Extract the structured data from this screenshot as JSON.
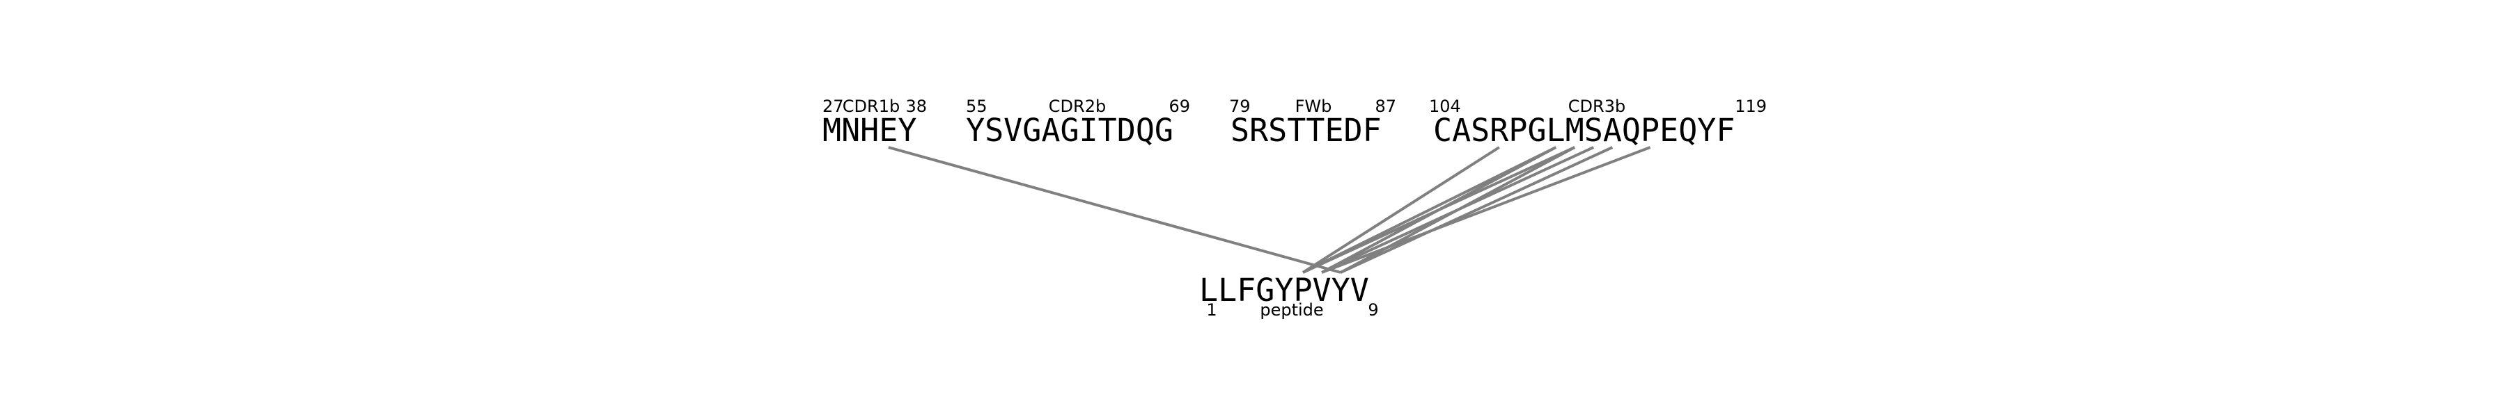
{
  "segments": [
    {
      "id": "cdr1b",
      "sequence": "MNHEY",
      "start": "27",
      "name": "CDR1b",
      "end": "38"
    },
    {
      "id": "cdr2b",
      "sequence": "YSVGAGITDQG",
      "start": "55",
      "name": "CDR2b",
      "end": "69"
    },
    {
      "id": "fwb",
      "sequence": "SRSTTEDF",
      "start": "79",
      "name": "FWb",
      "end": "87"
    },
    {
      "id": "cdr3b",
      "sequence": "CASRPGLMSAQPEQYF",
      "start": "104",
      "name": "CDR3b",
      "end": "119"
    }
  ],
  "peptide": {
    "sequence": "LLFGYPVYV",
    "start": "1",
    "name": "peptide",
    "end": "9"
  },
  "contacts": [
    {
      "segment": "cdr1b",
      "residue": 3,
      "peptide_residue": 7
    },
    {
      "segment": "cdr3b",
      "residue": 3,
      "peptide_residue": 5
    },
    {
      "segment": "cdr3b",
      "residue": 6,
      "peptide_residue": 5
    },
    {
      "segment": "cdr3b",
      "residue": 6,
      "peptide_residue": 6
    },
    {
      "segment": "cdr3b",
      "residue": 7,
      "peptide_residue": 5
    },
    {
      "segment": "cdr3b",
      "residue": 7,
      "peptide_residue": 7
    },
    {
      "segment": "cdr3b",
      "residue": 8,
      "peptide_residue": 6
    },
    {
      "segment": "cdr3b",
      "residue": 9,
      "peptide_residue": 7
    },
    {
      "segment": "cdr3b",
      "residue": 11,
      "peptide_residue": 6
    }
  ],
  "colors": {
    "line": "#808080",
    "text": "#000000"
  }
}
